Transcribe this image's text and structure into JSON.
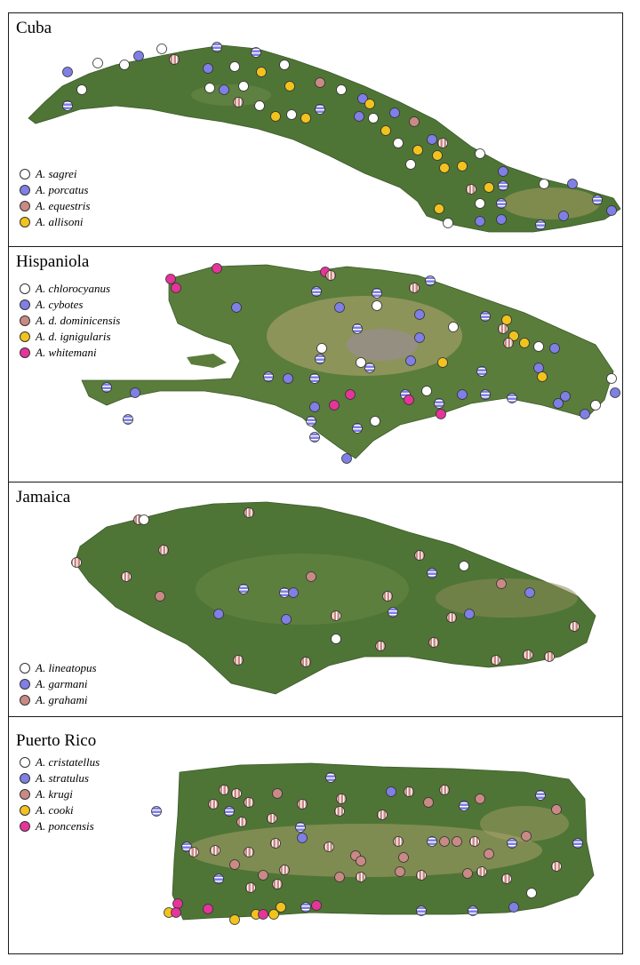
{
  "colors": {
    "sagrei": "#ffffff",
    "porcatus": "#7f7fe6",
    "equestris": "#c98a85",
    "allisoni": "#f2c31e",
    "chlorocyanus": "#ffffff",
    "cybotes": "#7f7fe6",
    "dominicensis": "#c98a85",
    "ignigularis": "#f2c31e",
    "whitemani": "#e6349a",
    "lineatopus": "#ffffff",
    "garmani": "#7f7fe6",
    "grahami": "#c98a85",
    "cristatellus": "#ffffff",
    "stratulus": "#7f7fe6",
    "krugi": "#c98a85",
    "cooki": "#f2c31e",
    "poncensis": "#e6349a",
    "land": "#4f7536",
    "highland": "#b8a873"
  },
  "panels": [
    {
      "title": "Cuba",
      "legend": [
        {
          "label": "A. sagrei",
          "color": "#ffffff",
          "icon": "circle-icon"
        },
        {
          "label": "A. porcatus",
          "color": "#7f7fe6",
          "icon": "circle-icon"
        },
        {
          "label": "A. equestris",
          "color": "#c98a85",
          "icon": "circle-icon"
        },
        {
          "label": "A. allisoni",
          "color": "#f2c31e",
          "icon": "circle-icon"
        }
      ]
    },
    {
      "title": "Hispaniola",
      "legend": [
        {
          "label": "A. chlorocyanus",
          "color": "#ffffff",
          "icon": "circle-icon"
        },
        {
          "label": "A. cybotes",
          "color": "#7f7fe6",
          "icon": "circle-icon"
        },
        {
          "label": "A. d. dominicensis",
          "color": "#c98a85",
          "icon": "circle-icon"
        },
        {
          "label": "A. d. ignigularis",
          "color": "#f2c31e",
          "icon": "circle-icon"
        },
        {
          "label": "A. whitemani",
          "color": "#e6349a",
          "icon": "circle-icon"
        }
      ]
    },
    {
      "title": "Jamaica",
      "legend": [
        {
          "label": "A. lineatopus",
          "color": "#ffffff",
          "icon": "circle-icon"
        },
        {
          "label": "A. garmani",
          "color": "#7f7fe6",
          "icon": "circle-icon"
        },
        {
          "label": "A. grahami",
          "color": "#c98a85",
          "icon": "circle-icon"
        }
      ]
    },
    {
      "title": "Puerto Rico",
      "legend": [
        {
          "label": "A. cristatellus",
          "color": "#ffffff",
          "icon": "circle-icon"
        },
        {
          "label": "A. stratulus",
          "color": "#7f7fe6",
          "icon": "circle-icon"
        },
        {
          "label": "A. krugi",
          "color": "#c98a85",
          "icon": "circle-icon"
        },
        {
          "label": "A. cooki",
          "color": "#f2c31e",
          "icon": "circle-icon"
        },
        {
          "label": "A. poncensis",
          "color": "#e6349a",
          "icon": "circle-icon"
        }
      ]
    }
  ]
}
